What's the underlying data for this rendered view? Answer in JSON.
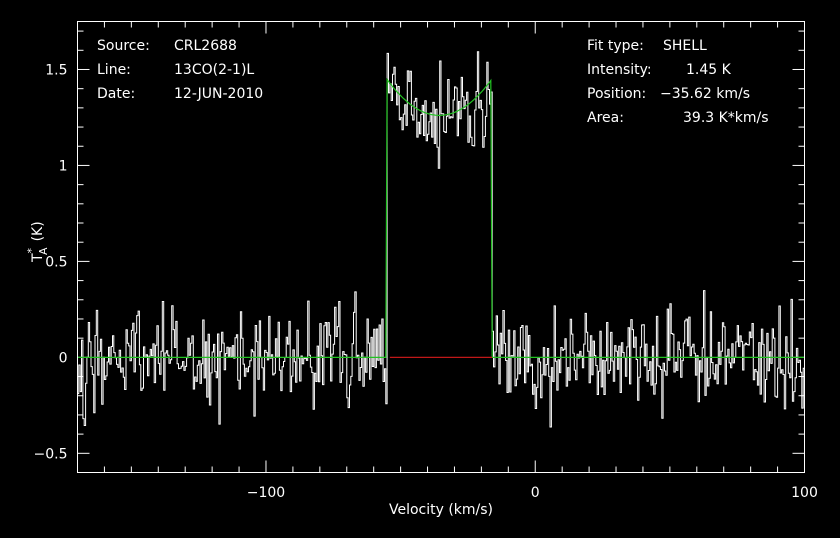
{
  "header_info": {
    "left": [
      {
        "key": "Source:",
        "value": "CRL2688"
      },
      {
        "key": "Line:",
        "value": "13CO(2-1)L"
      },
      {
        "key": "Date:",
        "value": "12-JUN-2010"
      }
    ],
    "right": [
      {
        "key": "Fit type:",
        "value": "SHELL"
      },
      {
        "key": "Intensity:",
        "value": "1.45 K"
      },
      {
        "key": "Position:",
        "value": "−35.62 km/s"
      },
      {
        "key": "Area:",
        "value": "39.3 K*km/s"
      }
    ]
  },
  "colors": {
    "background": "#000000",
    "spectrum": "#ffffff",
    "fit": "#22c322",
    "baseline": "#c01818",
    "axes": "#ffffff"
  },
  "chart_data": {
    "type": "line",
    "title": "",
    "xlabel": "Velocity (km/s)",
    "ylabel_main": "T",
    "ylabel_sup": "*",
    "ylabel_sub": "A",
    "ylabel_unit": "(K)",
    "xlim": [
      -170,
      100
    ],
    "ylim": [
      -0.6,
      1.75
    ],
    "xticks": [
      -100,
      0,
      100
    ],
    "xtick_labels": [
      "−100",
      "0",
      "100"
    ],
    "yticks": [
      -0.5,
      0,
      0.5,
      1,
      1.5
    ],
    "ytick_labels": [
      "−0.5",
      "0",
      "0.5",
      "1",
      "1.5"
    ],
    "grid": false,
    "series": [
      {
        "role": "spectrum",
        "style": "step",
        "x_start": -170,
        "x_step": 0.5,
        "noise_rms": 0.12
      },
      {
        "role": "fit",
        "profile": "shell",
        "center": -35.62,
        "half_width": 19.5,
        "peak": 1.45,
        "horn_ratio": 0.15,
        "area": 39.3
      }
    ],
    "baseline_segment": {
      "x": [
        -54,
        -16
      ],
      "y": 0
    }
  }
}
